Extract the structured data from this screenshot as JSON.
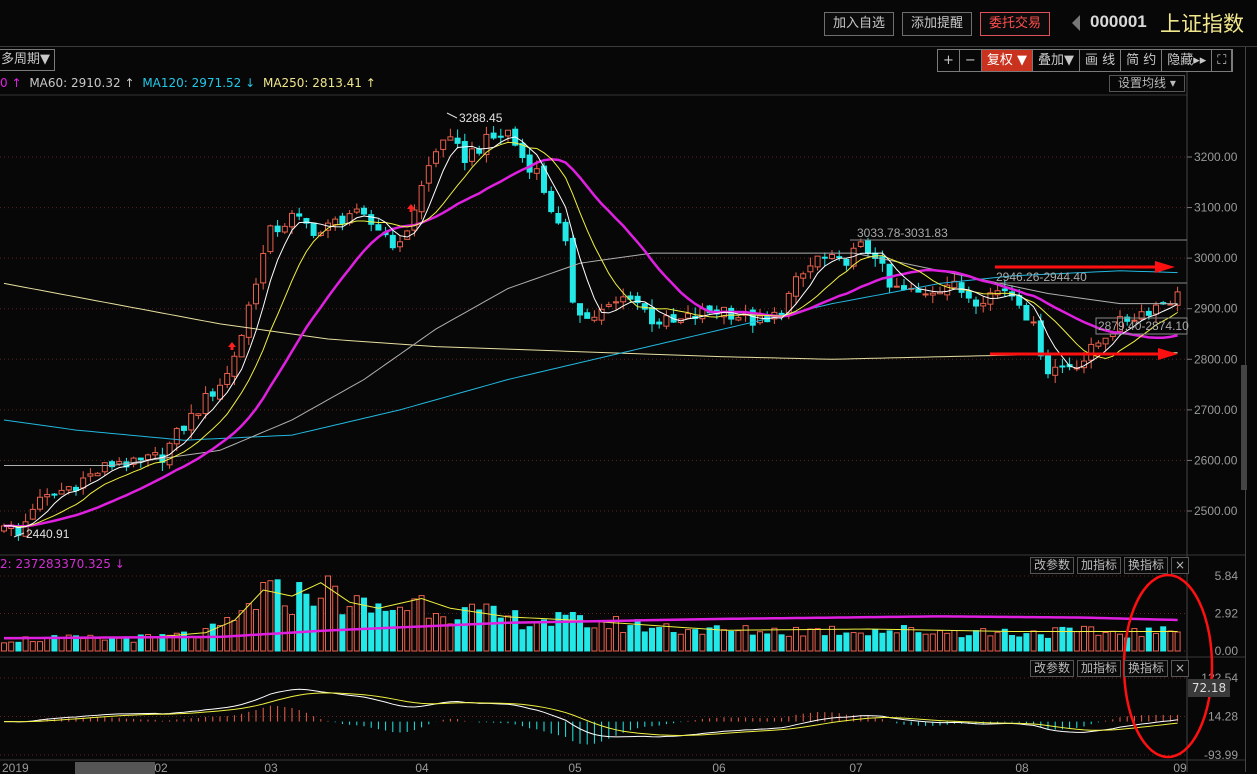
{
  "header": {
    "buttons": [
      "加入自选",
      "添加提醒",
      "委托交易"
    ],
    "stock_code": "000001",
    "stock_name": "上证指数"
  },
  "toolbar": {
    "period": "多周期▼",
    "items": [
      "+",
      "−",
      "复权 ▼",
      "叠加▼",
      "画 线",
      "简 约",
      "隐藏▸▸",
      "⛶"
    ],
    "active_index": 2,
    "set_ma": "设置均线 ▾"
  },
  "legend": [
    {
      "text": "0 ↑",
      "color": "#e020e0"
    },
    {
      "text": "MA60: 2910.32 ↑",
      "color": "#c8c8c8"
    },
    {
      "text": "MA120: 2971.52 ↓",
      "color": "#22c8e8"
    },
    {
      "text": "MA250: 2813.41 ↑",
      "color": "#f0e68c"
    }
  ],
  "price_axis": [
    "3200.00",
    "3100.00",
    "3000.00",
    "2900.00",
    "2800.00",
    "2700.00",
    "2600.00",
    "2500.00"
  ],
  "annotations": {
    "high": "3288.45",
    "low": "2440.91",
    "range1": "3033.78-3031.83",
    "range2": "2946.26-2944.40",
    "range3": "2879.40-2874.10"
  },
  "volume_panel": {
    "header": "2: 237283370.325 ↓",
    "axis": [
      "5.84",
      "2.92",
      "0.00"
    ],
    "buttons": [
      "改参数",
      "加指标",
      "换指标",
      "×"
    ]
  },
  "macd_panel": {
    "axis": [
      "122.54",
      "14.28",
      "-93.99"
    ],
    "current": "72.18",
    "buttons": [
      "改参数",
      "加指标",
      "换指标",
      "×"
    ]
  },
  "x_axis": [
    "2019",
    "02",
    "03",
    "04",
    "05",
    "06",
    "07",
    "08",
    "09"
  ],
  "colors": {
    "up": "#e8604c",
    "down": "#22e8e8",
    "ma5": "#ffffff",
    "ma10": "#f0f040",
    "ma20": "#e020e0",
    "ma60": "#b0b0b0",
    "ma120": "#22b8e0",
    "ma250": "#e8e0a0",
    "markup": "#ff1010"
  },
  "chart_data": {
    "type": "candlestick",
    "candles": 164,
    "price_path": [
      [
        0,
        2480
      ],
      [
        2,
        2450
      ],
      [
        4,
        2510
      ],
      [
        8,
        2540
      ],
      [
        12,
        2570
      ],
      [
        16,
        2600
      ],
      [
        18,
        2590
      ],
      [
        22,
        2610
      ],
      [
        24,
        2650
      ],
      [
        28,
        2720
      ],
      [
        31,
        2770
      ],
      [
        33,
        2850
      ],
      [
        35,
        2960
      ],
      [
        37,
        3050
      ],
      [
        40,
        3080
      ],
      [
        44,
        3050
      ],
      [
        48,
        3090
      ],
      [
        52,
        3060
      ],
      [
        55,
        3020
      ],
      [
        57,
        3100
      ],
      [
        59,
        3180
      ],
      [
        61,
        3240
      ],
      [
        64,
        3200
      ],
      [
        67,
        3230
      ],
      [
        70,
        3250
      ],
      [
        72,
        3200
      ],
      [
        74,
        3170
      ],
      [
        76,
        3100
      ],
      [
        78,
        3020
      ],
      [
        79,
        2920
      ],
      [
        81,
        2880
      ],
      [
        84,
        2900
      ],
      [
        87,
        2930
      ],
      [
        90,
        2880
      ],
      [
        93,
        2870
      ],
      [
        97,
        2890
      ],
      [
        100,
        2900
      ],
      [
        103,
        2880
      ],
      [
        106,
        2870
      ],
      [
        108,
        2900
      ],
      [
        110,
        2950
      ],
      [
        113,
        3000
      ],
      [
        116,
        2990
      ],
      [
        119,
        3020
      ],
      [
        121,
        3010
      ],
      [
        123,
        2940
      ],
      [
        127,
        2930
      ],
      [
        131,
        2950
      ],
      [
        135,
        2920
      ],
      [
        139,
        2940
      ],
      [
        141,
        2920
      ],
      [
        143,
        2860
      ],
      [
        145,
        2780
      ],
      [
        148,
        2790
      ],
      [
        150,
        2800
      ],
      [
        153,
        2850
      ],
      [
        156,
        2880
      ],
      [
        159,
        2900
      ],
      [
        162,
        2920
      ],
      [
        164,
        2930
      ]
    ],
    "ma60": [
      [
        0,
        2590
      ],
      [
        15,
        2590
      ],
      [
        30,
        2620
      ],
      [
        40,
        2680
      ],
      [
        50,
        2760
      ],
      [
        60,
        2860
      ],
      [
        70,
        2940
      ],
      [
        80,
        2990
      ],
      [
        90,
        3010
      ],
      [
        118,
        3010
      ],
      [
        125,
        2990
      ],
      [
        135,
        2960
      ],
      [
        145,
        2930
      ],
      [
        155,
        2910
      ],
      [
        164,
        2910
      ]
    ],
    "ma120": [
      [
        0,
        2680
      ],
      [
        10,
        2660
      ],
      [
        25,
        2640
      ],
      [
        40,
        2650
      ],
      [
        55,
        2700
      ],
      [
        70,
        2760
      ],
      [
        85,
        2810
      ],
      [
        100,
        2860
      ],
      [
        115,
        2910
      ],
      [
        130,
        2950
      ],
      [
        140,
        2965
      ],
      [
        155,
        2975
      ],
      [
        164,
        2971
      ]
    ],
    "ma250": [
      [
        0,
        2950
      ],
      [
        15,
        2910
      ],
      [
        30,
        2870
      ],
      [
        45,
        2840
      ],
      [
        60,
        2825
      ],
      [
        80,
        2815
      ],
      [
        100,
        2805
      ],
      [
        115,
        2800
      ],
      [
        130,
        2805
      ],
      [
        145,
        2810
      ],
      [
        164,
        2813
      ]
    ],
    "volume_path": [
      [
        0,
        1.0
      ],
      [
        20,
        1.1
      ],
      [
        28,
        1.5
      ],
      [
        32,
        2.5
      ],
      [
        36,
        5.0
      ],
      [
        40,
        4.5
      ],
      [
        44,
        5.6
      ],
      [
        48,
        4.0
      ],
      [
        52,
        3.5
      ],
      [
        58,
        4.3
      ],
      [
        62,
        3.5
      ],
      [
        70,
        2.8
      ],
      [
        80,
        2.5
      ],
      [
        100,
        1.7
      ],
      [
        120,
        1.8
      ],
      [
        140,
        1.6
      ],
      [
        164,
        1.6
      ]
    ],
    "volume_ma": [
      [
        0,
        1.0
      ],
      [
        30,
        1.1
      ],
      [
        45,
        1.6
      ],
      [
        70,
        2.2
      ],
      [
        100,
        2.5
      ],
      [
        130,
        2.7
      ],
      [
        150,
        2.6
      ],
      [
        164,
        2.4
      ]
    ],
    "price_range": [
      2430,
      3300
    ],
    "volume_range": [
      0,
      5.84
    ],
    "macd_range": [
      -93.99,
      122.54
    ]
  }
}
